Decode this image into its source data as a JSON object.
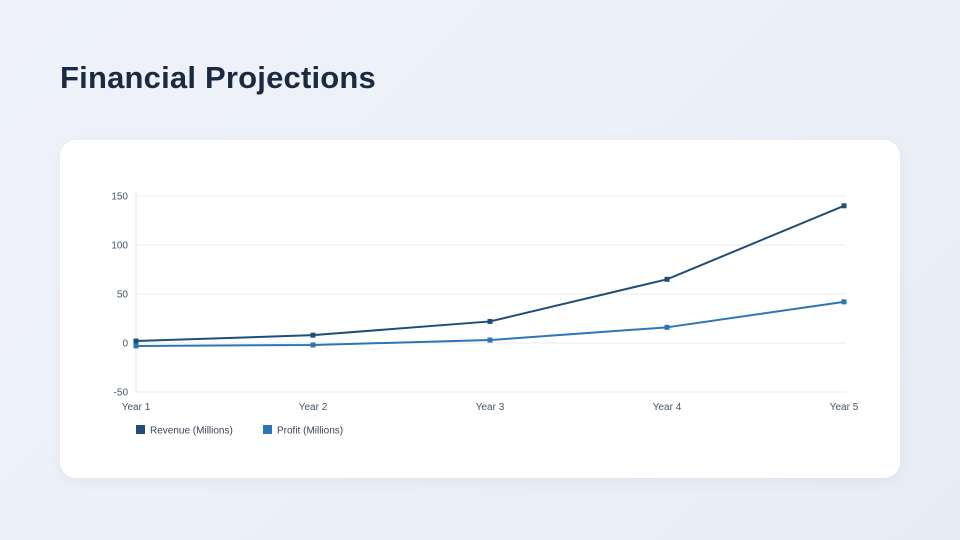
{
  "slide": {
    "title": "Financial Projections",
    "background_color": "#ebf0f7",
    "card_color": "#ffffff",
    "title_color": "#1b2a41"
  },
  "chart_data": {
    "type": "line",
    "title": "",
    "xlabel": "",
    "ylabel": "",
    "categories": [
      "Year 1",
      "Year 2",
      "Year 3",
      "Year 4",
      "Year 5"
    ],
    "series": [
      {
        "name": "Revenue (Millions)",
        "color": "#1f4e79",
        "values": [
          2,
          8,
          22,
          65,
          140
        ]
      },
      {
        "name": "Profit (Millions)",
        "color": "#2e75b6",
        "values": [
          -3,
          -2,
          3,
          16,
          42
        ]
      }
    ],
    "ylim": [
      -50,
      150
    ],
    "yticks": [
      -50,
      0,
      50,
      100,
      150
    ],
    "grid": true,
    "legend_position": "bottom-left",
    "axis_text_color": "#44546a",
    "gridline_color": "#e7ebf1",
    "axisline_color": "#dfe5ee"
  }
}
